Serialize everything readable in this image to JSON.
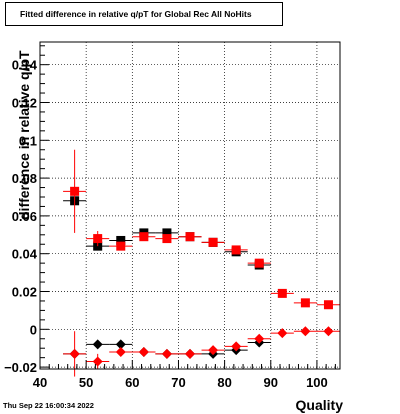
{
  "chart_data": {
    "type": "scatter",
    "title": "Fitted difference in relative q/pT for Global Rec All NoHits",
    "xlabel": "Quality",
    "ylabel": "difference in relative q/pT",
    "xlim": [
      40,
      105
    ],
    "ylim": [
      -0.021,
      0.152
    ],
    "x_ticks": [
      40,
      50,
      60,
      70,
      80,
      90,
      100
    ],
    "y_ticks": [
      -0.02,
      0,
      0.02,
      0.04,
      0.06,
      0.08,
      0.1,
      0.12,
      0.14
    ],
    "y_tick_labels": [
      "−0.02",
      "0",
      "0.02",
      "0.04",
      "0.06",
      "0.08",
      "0.1",
      "0.12",
      "0.14"
    ],
    "grid": true,
    "footer": "Thu Sep 22 16:00:34 2022",
    "series": [
      {
        "marker": "square",
        "color": "#000000",
        "points": [
          {
            "x": 47.5,
            "y": 0.068,
            "ex": 2.5,
            "ey": 0.0
          },
          {
            "x": 52.5,
            "y": 0.044,
            "ex": 2.5,
            "ey": 0.0
          },
          {
            "x": 57.5,
            "y": 0.047,
            "ex": 2.5,
            "ey": 0.0
          },
          {
            "x": 62.5,
            "y": 0.051,
            "ex": 2.5,
            "ey": 0.0
          },
          {
            "x": 67.5,
            "y": 0.051,
            "ex": 2.5,
            "ey": 0.0
          },
          {
            "x": 72.5,
            "y": 0.049,
            "ex": 2.5,
            "ey": 0.0
          },
          {
            "x": 77.5,
            "y": 0.046,
            "ex": 2.5,
            "ey": 0.0
          },
          {
            "x": 82.5,
            "y": 0.041,
            "ex": 2.5,
            "ey": 0.0
          },
          {
            "x": 87.5,
            "y": 0.034,
            "ex": 2.5,
            "ey": 0.0
          }
        ]
      },
      {
        "marker": "square",
        "color": "#ff0000",
        "points": [
          {
            "x": 47.5,
            "y": 0.073,
            "ex": 2.5,
            "ey": 0.022
          },
          {
            "x": 52.5,
            "y": 0.048,
            "ex": 2.5,
            "ey": 0.004
          },
          {
            "x": 57.5,
            "y": 0.044,
            "ex": 2.5,
            "ey": 0.002
          },
          {
            "x": 62.5,
            "y": 0.049,
            "ex": 2.5,
            "ey": 0.0
          },
          {
            "x": 67.5,
            "y": 0.048,
            "ex": 2.5,
            "ey": 0.0
          },
          {
            "x": 72.5,
            "y": 0.049,
            "ex": 2.5,
            "ey": 0.0
          },
          {
            "x": 77.5,
            "y": 0.046,
            "ex": 2.5,
            "ey": 0.0
          },
          {
            "x": 82.5,
            "y": 0.042,
            "ex": 2.5,
            "ey": 0.0
          },
          {
            "x": 87.5,
            "y": 0.035,
            "ex": 2.5,
            "ey": 0.0
          },
          {
            "x": 92.5,
            "y": 0.019,
            "ex": 2.5,
            "ey": 0.0
          },
          {
            "x": 97.5,
            "y": 0.014,
            "ex": 2.5,
            "ey": 0.0
          },
          {
            "x": 102.5,
            "y": 0.013,
            "ex": 2.5,
            "ey": 0.0
          }
        ]
      },
      {
        "marker": "diamond",
        "color": "#000000",
        "points": [
          {
            "x": 47.5,
            "y": -0.013,
            "ex": 2.5,
            "ey": 0.0
          },
          {
            "x": 52.5,
            "y": -0.008,
            "ex": 2.5,
            "ey": 0.0
          },
          {
            "x": 57.5,
            "y": -0.008,
            "ex": 2.5,
            "ey": 0.0
          },
          {
            "x": 62.5,
            "y": -0.012,
            "ex": 2.5,
            "ey": 0.0
          },
          {
            "x": 67.5,
            "y": -0.013,
            "ex": 2.5,
            "ey": 0.0
          },
          {
            "x": 72.5,
            "y": -0.013,
            "ex": 2.5,
            "ey": 0.0
          },
          {
            "x": 77.5,
            "y": -0.013,
            "ex": 2.5,
            "ey": 0.0
          },
          {
            "x": 82.5,
            "y": -0.011,
            "ex": 2.5,
            "ey": 0.0
          },
          {
            "x": 87.5,
            "y": -0.007,
            "ex": 2.5,
            "ey": 0.0
          }
        ]
      },
      {
        "marker": "diamond",
        "color": "#ff0000",
        "points": [
          {
            "x": 47.5,
            "y": -0.013,
            "ex": 2.5,
            "ey": 0.012
          },
          {
            "x": 52.5,
            "y": -0.017,
            "ex": 2.5,
            "ey": 0.004
          },
          {
            "x": 57.5,
            "y": -0.012,
            "ex": 2.5,
            "ey": 0.0
          },
          {
            "x": 62.5,
            "y": -0.012,
            "ex": 2.5,
            "ey": 0.0
          },
          {
            "x": 67.5,
            "y": -0.013,
            "ex": 2.5,
            "ey": 0.0
          },
          {
            "x": 72.5,
            "y": -0.013,
            "ex": 2.5,
            "ey": 0.0
          },
          {
            "x": 77.5,
            "y": -0.011,
            "ex": 2.5,
            "ey": 0.0
          },
          {
            "x": 82.5,
            "y": -0.009,
            "ex": 2.5,
            "ey": 0.0
          },
          {
            "x": 87.5,
            "y": -0.005,
            "ex": 2.5,
            "ey": 0.0
          },
          {
            "x": 92.5,
            "y": -0.002,
            "ex": 2.5,
            "ey": 0.0
          },
          {
            "x": 97.5,
            "y": -0.001,
            "ex": 2.5,
            "ey": 0.0
          },
          {
            "x": 102.5,
            "y": -0.001,
            "ex": 2.5,
            "ey": 0.0
          }
        ]
      }
    ]
  }
}
